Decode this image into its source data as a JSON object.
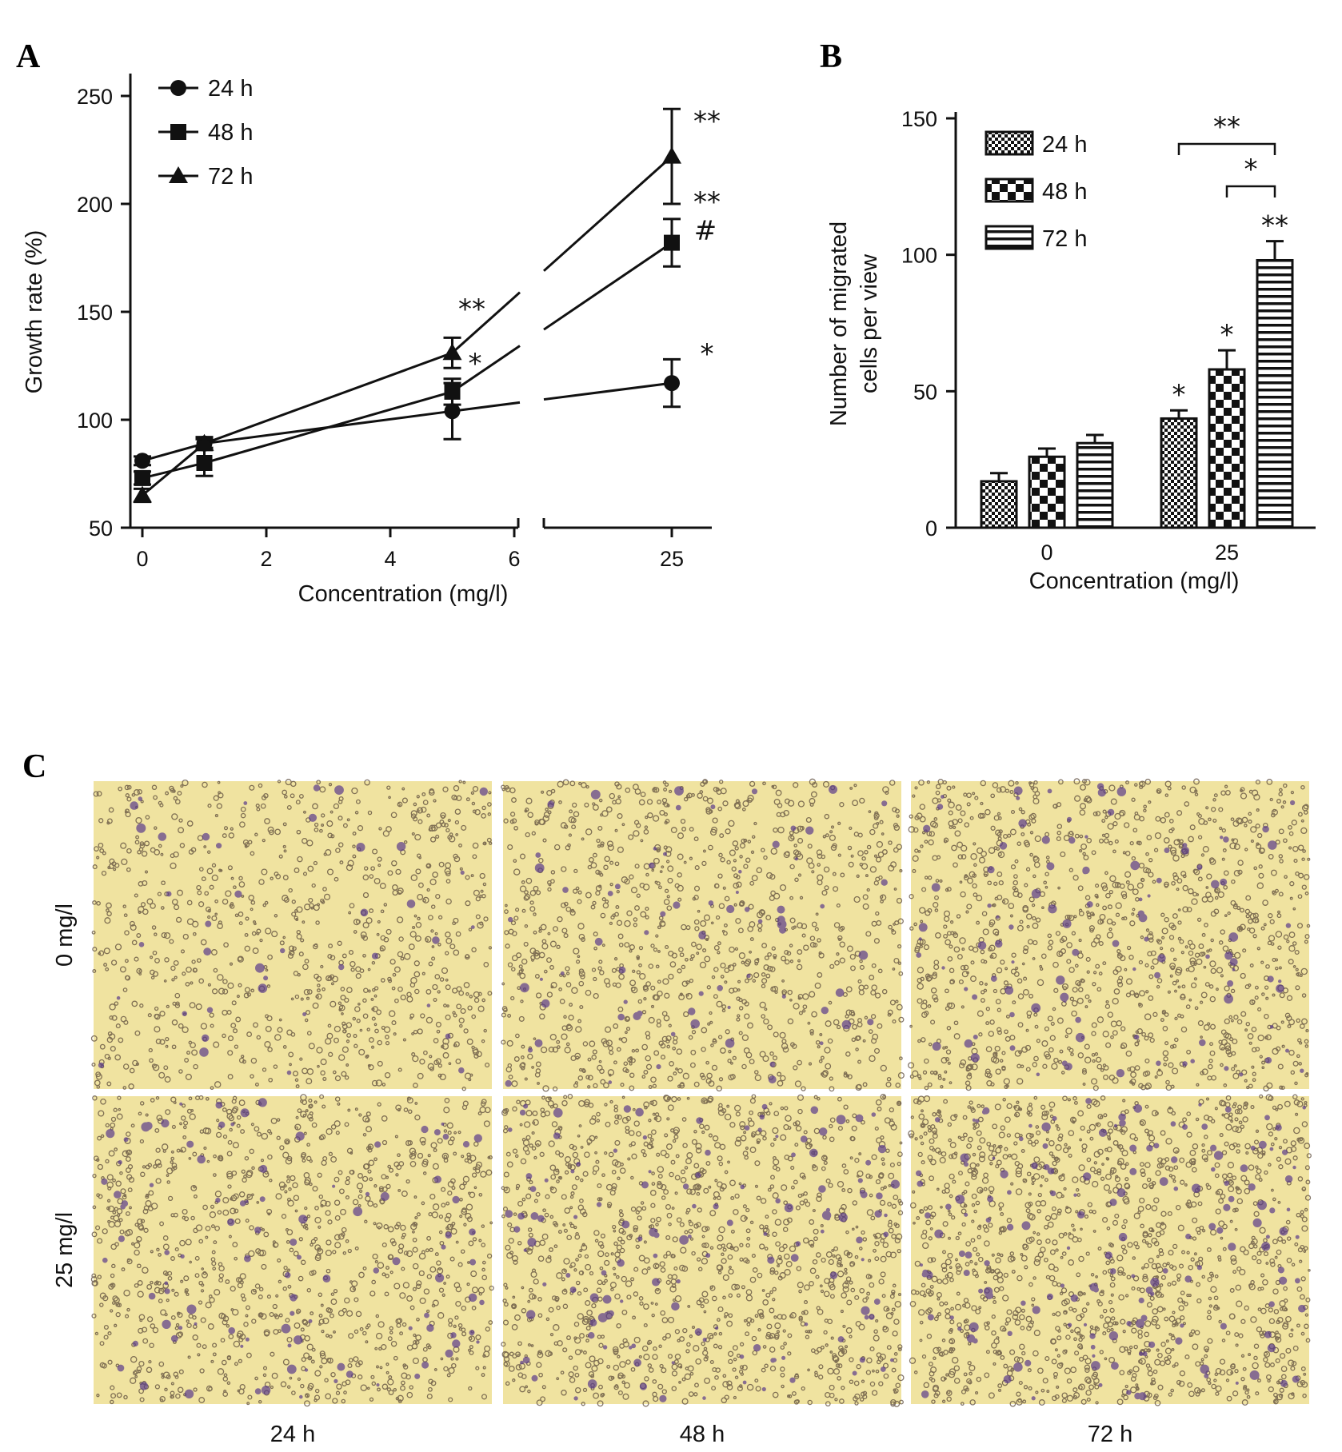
{
  "panels": [
    {
      "letter": "A"
    },
    {
      "letter": "B"
    },
    {
      "letter": "C"
    }
  ],
  "chart_data": [
    {
      "panel": "A",
      "type": "line",
      "xlabel": "Concentration (mg/l)",
      "ylabel": "Growth rate (%)",
      "ylim": [
        50,
        250
      ],
      "yticks": [
        50,
        100,
        150,
        200,
        250
      ],
      "xticks": [
        "0",
        "2",
        "4",
        "6",
        "25"
      ],
      "x_axis_break": [
        6,
        25
      ],
      "legend_position": "top-left",
      "grid": false,
      "x": [
        0,
        1,
        5,
        25
      ],
      "series": [
        {
          "name": "24 h",
          "marker": "circle",
          "values": [
            81,
            89,
            104,
            117
          ],
          "errors": [
            2,
            3,
            13,
            11
          ]
        },
        {
          "name": "48 h",
          "marker": "square",
          "values": [
            73,
            80,
            113,
            182
          ],
          "errors": [
            3,
            6,
            6,
            11
          ]
        },
        {
          "name": "72 h",
          "marker": "triangle",
          "values": [
            65,
            89,
            131,
            222
          ],
          "errors": [
            3,
            2,
            7,
            22
          ]
        }
      ],
      "annotations": [
        {
          "text": "**",
          "near_series": "72 h",
          "x": 5
        },
        {
          "text": "*",
          "near_series": "48 h",
          "x": 5
        },
        {
          "text": "**",
          "near_series": "72 h",
          "x": 25
        },
        {
          "text": "**",
          "near_series": "48 h",
          "x": 25
        },
        {
          "text": "#",
          "near_series": "48 h",
          "x": 25
        },
        {
          "text": "*",
          "near_series": "24 h",
          "x": 25
        }
      ]
    },
    {
      "panel": "B",
      "type": "bar",
      "xlabel": "Concentration (mg/l)",
      "ylabel": [
        "Number of migrated",
        "cells per view"
      ],
      "ylim": [
        0,
        150
      ],
      "yticks": [
        0,
        50,
        100,
        150
      ],
      "categories": [
        "0",
        "25"
      ],
      "legend_position": "top-left",
      "grid": false,
      "series": [
        {
          "name": "24 h",
          "pattern": "checker-fine",
          "values": [
            17,
            40
          ],
          "errors": [
            3,
            3
          ]
        },
        {
          "name": "48 h",
          "pattern": "checker-coarse",
          "values": [
            26,
            58
          ],
          "errors": [
            3,
            7
          ]
        },
        {
          "name": "72 h",
          "pattern": "horizontal",
          "values": [
            31,
            98
          ],
          "errors": [
            3,
            7
          ]
        }
      ],
      "bar_annotations": [
        {
          "text": "*",
          "category": "25",
          "series": "24 h"
        },
        {
          "text": "*",
          "category": "25",
          "series": "48 h"
        },
        {
          "text": "**",
          "category": "25",
          "series": "72 h"
        }
      ],
      "brackets": [
        {
          "text": "**",
          "from": "24 h",
          "to": "72 h",
          "category": "25"
        },
        {
          "text": "*",
          "from": "48 h",
          "to": "72 h",
          "category": "25"
        }
      ]
    }
  ],
  "micrographs": {
    "panel": "C",
    "row_labels": [
      "0 mg/l",
      "25 mg/l"
    ],
    "column_labels": [
      "24 h",
      "48 h",
      "72 h"
    ],
    "background_color": "#f0e3a0",
    "stain_color": "#5a3a8a"
  }
}
